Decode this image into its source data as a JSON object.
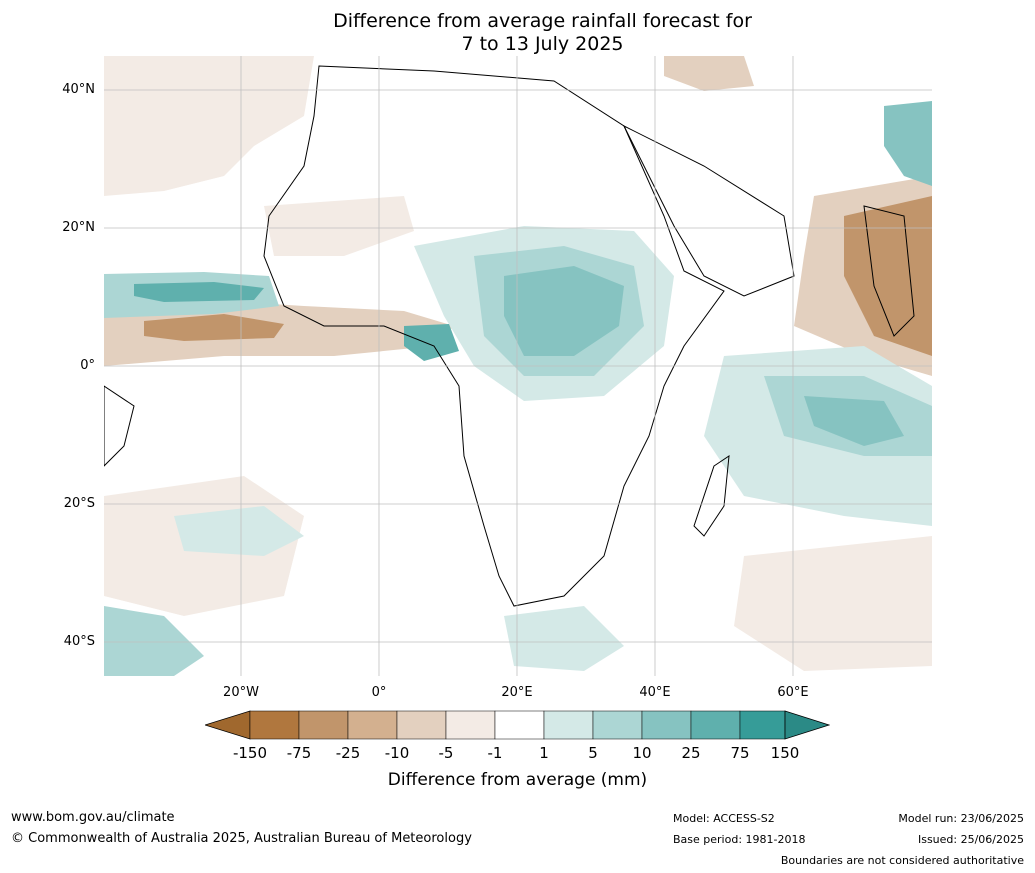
{
  "title": {
    "line1": "Difference from average rainfall forecast for",
    "line2": "7 to 13 July 2025"
  },
  "map": {
    "lat_labels": [
      "40°N",
      "20°N",
      "0°",
      "20°S",
      "40°S"
    ],
    "lon_labels": [
      "20°W",
      "0°",
      "20°E",
      "40°E",
      "60°E"
    ]
  },
  "legend": {
    "title": "Difference from average (mm)",
    "ticks": [
      "-150",
      "-75",
      "-25",
      "-10",
      "-5",
      "-1",
      "1",
      "5",
      "10",
      "25",
      "75",
      "150"
    ],
    "colors": [
      "#a0682e",
      "#b0773e",
      "#c1956b",
      "#d3b08f",
      "#e3d0bf",
      "#f3ebe5",
      "#ffffff",
      "#d4e9e7",
      "#acd6d4",
      "#86c3c1",
      "#5fb0ad",
      "#369c98",
      "#2b8a86"
    ]
  },
  "footer": {
    "website": "www.bom.gov.au/climate",
    "copyright": "© Commonwealth of Australia 2025, Australian Bureau of Meteorology",
    "model": "Model: ACCESS-S2",
    "base_period": "Base period: 1981-2018",
    "model_run": "Model run: 23/06/2025",
    "issued": "Issued: 25/06/2025",
    "disclaimer": "Boundaries are not considered authoritative"
  }
}
